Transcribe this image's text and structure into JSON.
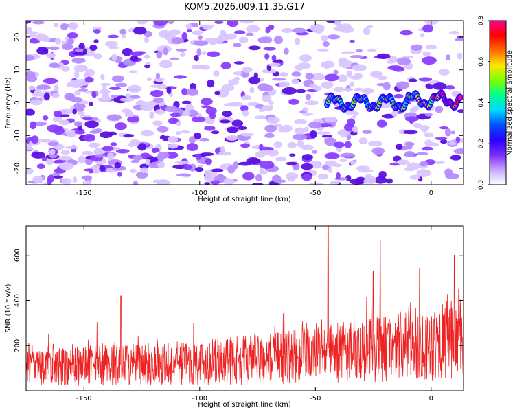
{
  "title": "KOM5.2026.009.11.35.G17",
  "chart_data": [
    {
      "type": "heatmap",
      "name": "spectrogram",
      "xlabel": "Height of straight line (km)",
      "ylabel": "Frequency (Hz)",
      "xlim": [
        -175,
        14
      ],
      "ylim": [
        -25,
        25
      ],
      "xticks": [
        -150,
        -100,
        -50,
        0
      ],
      "yticks": [
        20,
        10,
        0,
        -10,
        -20
      ],
      "signal_track": {
        "description": "bright narrow band near 0 Hz from about -45 km to the right edge",
        "x_start": -45,
        "x_end": 13,
        "frequency": 0,
        "peak_amplitude": 0.8,
        "peak_x": 8
      },
      "background_amplitude_range": [
        0.0,
        0.2
      ],
      "colorbar": {
        "label": "Normalized spectral amplitude",
        "range": [
          0.0,
          0.8
        ],
        "ticks": [
          "0.0",
          "0.2",
          "0.4",
          "0.6",
          "0.8"
        ],
        "colors": [
          "#ffffff",
          "#c9a6ff",
          "#7a2bff",
          "#2b00ff",
          "#0050ff",
          "#00d8ff",
          "#00ff90",
          "#7cff00",
          "#ffe600",
          "#ff6a00",
          "#ff0000",
          "#ff0090"
        ]
      }
    },
    {
      "type": "line",
      "name": "snr",
      "xlabel": "Height of straight line (km)",
      "ylabel": "SNR (10 * v/v)",
      "xlim": [
        -175,
        14
      ],
      "ylim": [
        0,
        730
      ],
      "xticks": [
        -150,
        -100,
        -50,
        0
      ],
      "yticks": [
        200,
        400,
        600
      ],
      "color": "#ee2222",
      "series_shape": {
        "baseline_left": 110,
        "baseline_right": 230,
        "noise_range": [
          10,
          330
        ]
      },
      "peaks": [
        {
          "x": -134,
          "y": 420
        },
        {
          "x": -44.5,
          "y": 730
        },
        {
          "x": -25,
          "y": 530
        },
        {
          "x": -22,
          "y": 665
        },
        {
          "x": -5,
          "y": 540
        },
        {
          "x": 10,
          "y": 600
        },
        {
          "x": 12,
          "y": 450
        }
      ]
    }
  ]
}
